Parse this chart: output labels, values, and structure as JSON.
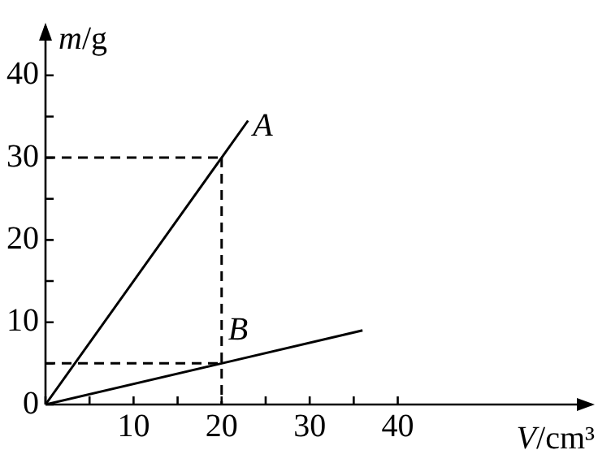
{
  "chart_data": {
    "type": "line",
    "xlabel": "V/cm³",
    "ylabel": "m/g",
    "xlim": [
      0,
      62
    ],
    "ylim": [
      0,
      46
    ],
    "xticks": [
      {
        "value": 0,
        "label": null
      },
      {
        "value": 5,
        "label": null
      },
      10,
      {
        "value": 15,
        "label": null
      },
      20,
      {
        "value": 25,
        "label": null
      },
      30,
      {
        "value": 35,
        "label": null
      },
      40
    ],
    "yticks": [
      0,
      {
        "value": 5,
        "label": null
      },
      10,
      {
        "value": 15,
        "label": null
      },
      20,
      {
        "value": 25,
        "label": null
      },
      30,
      {
        "value": 35,
        "label": null
      },
      40
    ],
    "grid": false,
    "legend": false,
    "marker": "none",
    "line_style": "solid",
    "series": [
      {
        "name": "A",
        "color": "#000000",
        "x": [
          0,
          20,
          23
        ],
        "values": [
          0,
          30,
          34.5
        ]
      },
      {
        "name": "B",
        "color": "#000000",
        "x": [
          0,
          20,
          36
        ],
        "values": [
          0,
          5,
          9
        ]
      },
      {
        "color": "#000000",
        "line_style": "dashed",
        "x": [
          0,
          20
        ],
        "values": [
          30,
          30
        ]
      },
      {
        "color": "#000000",
        "line_style": "dashed",
        "x": [
          20,
          20
        ],
        "values": [
          30,
          0
        ]
      },
      {
        "color": "#000000",
        "line_style": "dashed",
        "x": [
          0,
          20
        ],
        "values": [
          5,
          5
        ]
      }
    ]
  }
}
